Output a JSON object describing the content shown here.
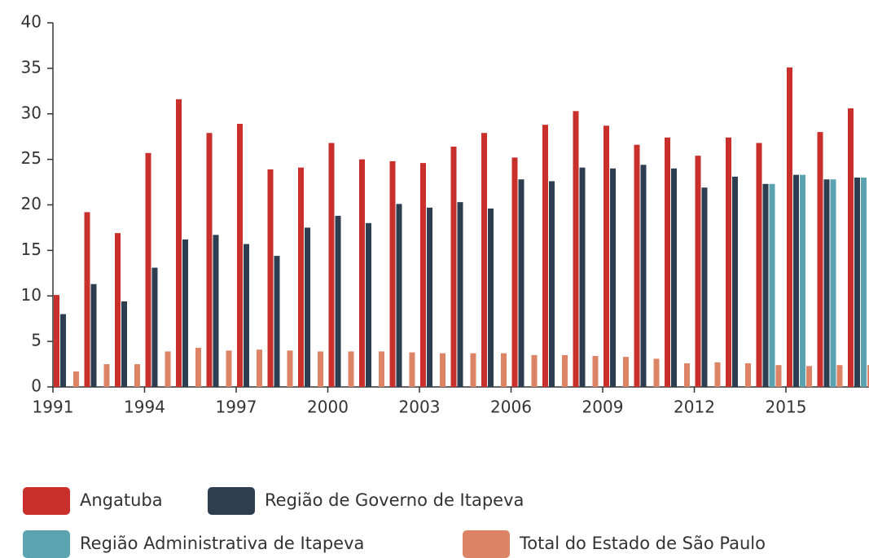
{
  "chart_data": {
    "type": "bar",
    "categories": [
      "1991",
      null,
      null,
      "1994",
      null,
      null,
      "1997",
      null,
      null,
      "2000",
      null,
      null,
      "2003",
      null,
      null,
      "2006",
      null,
      null,
      "2009",
      null,
      null,
      "2012",
      null,
      null,
      "2015",
      null,
      null
    ],
    "series": [
      {
        "name": "Angatuba",
        "color": "#c9302c",
        "values": [
          10.1,
          19.2,
          16.9,
          25.7,
          31.6,
          27.9,
          28.9,
          23.9,
          24.1,
          26.8,
          25.0,
          24.8,
          24.6,
          26.4,
          27.9,
          25.2,
          28.8,
          30.3,
          28.7,
          26.6,
          27.4,
          25.4,
          27.4,
          26.8,
          35.1,
          28.0,
          30.6
        ]
      },
      {
        "name": "Região de Governo de Itapeva",
        "color": "#2c3e50",
        "values": [
          8.0,
          11.3,
          9.4,
          13.1,
          16.2,
          16.7,
          15.7,
          14.4,
          17.5,
          18.8,
          18.0,
          20.1,
          19.7,
          20.3,
          19.6,
          22.8,
          22.6,
          24.1,
          24.0,
          24.4,
          24.0,
          21.9,
          23.1,
          22.3,
          23.3,
          22.8,
          23.0
        ]
      },
      {
        "name": "Região Administrativa de Itapeva",
        "color": "#5ba3b0",
        "values": [
          null,
          null,
          null,
          null,
          null,
          null,
          null,
          null,
          null,
          null,
          null,
          null,
          null,
          null,
          null,
          null,
          null,
          null,
          null,
          null,
          null,
          null,
          null,
          22.3,
          23.3,
          22.8,
          23.0
        ]
      },
      {
        "name": "Total do Estado de São Paulo",
        "color": "#dd8466",
        "values": [
          1.7,
          2.5,
          2.5,
          3.9,
          4.3,
          4.0,
          4.1,
          4.0,
          3.9,
          3.9,
          3.9,
          3.8,
          3.7,
          3.7,
          3.7,
          3.5,
          3.5,
          3.4,
          3.3,
          3.1,
          2.6,
          2.7,
          2.6,
          2.4,
          2.3,
          2.4,
          2.4
        ]
      }
    ],
    "ylim": [
      0,
      40
    ],
    "yticks": [
      0,
      5,
      10,
      15,
      20,
      25,
      30,
      35,
      40
    ],
    "grid": false
  }
}
